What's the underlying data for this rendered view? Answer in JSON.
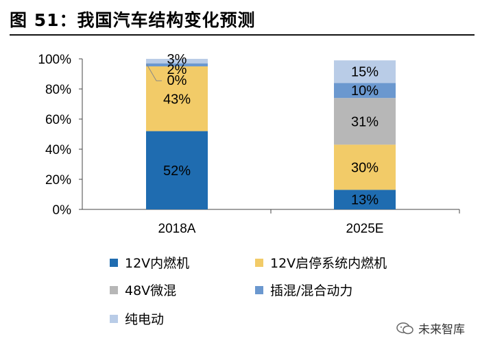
{
  "title": "图 51：我国汽车结构变化预测",
  "chart_data": {
    "type": "bar",
    "stacked": true,
    "title": "图 51：我国汽车结构变化预测",
    "categories": [
      "2018A",
      "2025E"
    ],
    "ylim": [
      0,
      100
    ],
    "y_ticks": [
      "0%",
      "20%",
      "40%",
      "60%",
      "80%",
      "100%"
    ],
    "series": [
      {
        "name": "12V内燃机",
        "color": "#1F6CB0",
        "values": [
          52,
          13
        ],
        "labels": [
          "52%",
          "13%"
        ]
      },
      {
        "name": "12V启停系统内燃机",
        "color": "#F2CB68",
        "values": [
          43,
          30
        ],
        "labels": [
          "43%",
          "30%"
        ]
      },
      {
        "name": "48V微混",
        "color": "#B7B7B7",
        "values": [
          0,
          31
        ],
        "labels": [
          "0%",
          "31%"
        ]
      },
      {
        "name": "插混/混合动力",
        "color": "#6B98CF",
        "values": [
          2,
          10
        ],
        "labels": [
          "2%",
          "10%"
        ]
      },
      {
        "name": "纯电动",
        "color": "#B9CCE7",
        "values": [
          3,
          15
        ],
        "labels": [
          "3%",
          "15%"
        ]
      }
    ]
  },
  "watermark": "未来智库"
}
